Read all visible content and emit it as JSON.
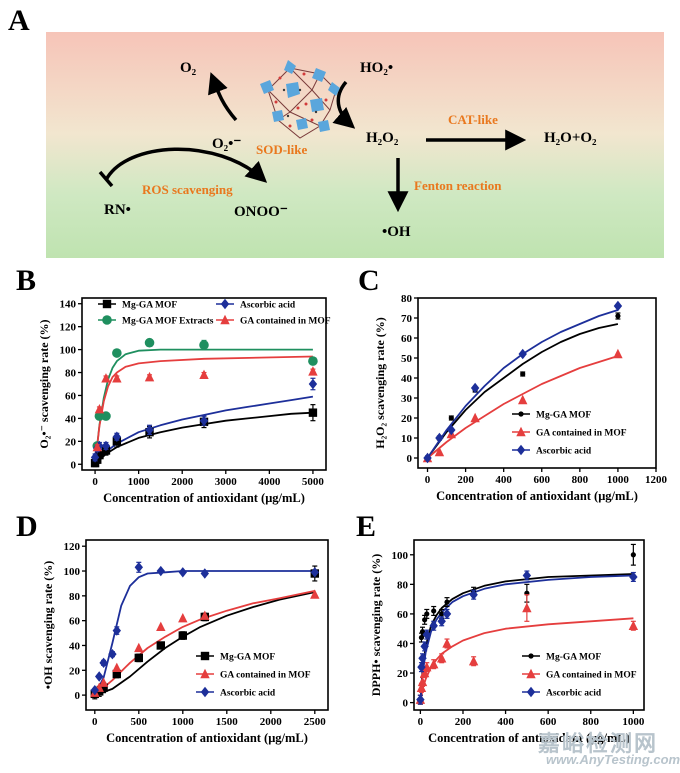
{
  "panel_labels": {
    "A": "A",
    "B": "B",
    "C": "C",
    "D": "D",
    "E": "E"
  },
  "panelA": {
    "o2": "O₂",
    "ho2": "HO₂•",
    "h2o2": "H₂O₂",
    "h2o_o2": "H₂O+O₂",
    "superoxide": "O₂•⁻",
    "rn": "RN•",
    "onoo": "ONOO⁻",
    "oh": "•OH",
    "sod_like": "SOD-like",
    "cat_like": "CAT-like",
    "fenton": "Fenton reaction",
    "ros_scavenging": "ROS scavenging",
    "colors": {
      "top": "#f6c4b8",
      "bottom": "#bfe3b0",
      "text_accent": "#e9781e",
      "mof": "#5aa6dc"
    }
  },
  "watermark": {
    "cn": "嘉峪检测网",
    "en": "www.AnyTesting.com"
  },
  "chart_data": [
    {
      "id": "B",
      "type": "scatter",
      "xlabel": "Concentration of antioxidant (μg/mL)",
      "ylabel": "O₂•⁻ scavenging rate (%)",
      "xlim": [
        -300,
        5300
      ],
      "ylim": [
        -5,
        145
      ],
      "xticks": [
        0,
        1000,
        2000,
        3000,
        4000,
        5000
      ],
      "yticks": [
        0,
        20,
        40,
        60,
        80,
        100,
        120,
        140
      ],
      "legend": "top, two columns",
      "series": [
        {
          "name": "Mg-GA MOF",
          "color": "#000000",
          "marker": "square",
          "x": [
            0,
            50,
            100,
            250,
            500,
            1250,
            2500,
            5000
          ],
          "y": [
            1,
            4,
            8,
            12,
            20,
            28,
            37,
            45
          ],
          "err": [
            3,
            3,
            3,
            4,
            5,
            5,
            5,
            7
          ]
        },
        {
          "name": "Mg-GA MOF Extracts",
          "color": "#1f8f5f",
          "marker": "circle",
          "x": [
            50,
            100,
            250,
            500,
            1250,
            2500,
            5000
          ],
          "y": [
            16,
            42,
            42,
            97,
            106,
            104,
            90
          ],
          "err": [
            2,
            3,
            3,
            2,
            2,
            4,
            3
          ]
        },
        {
          "name": "Ascorbic acid",
          "color": "#1d2f9a",
          "marker": "diamond",
          "x": [
            0,
            50,
            100,
            250,
            500,
            1250,
            2500,
            5000
          ],
          "y": [
            6,
            14,
            16,
            16,
            24,
            30,
            38,
            70
          ],
          "err": [
            3,
            3,
            3,
            3,
            3,
            4,
            4,
            5
          ]
        },
        {
          "name": "GA contained in MOF",
          "color": "#e53e3e",
          "marker": "triangle",
          "x": [
            50,
            100,
            250,
            500,
            1250,
            2500,
            5000
          ],
          "y": [
            15,
            48,
            75,
            75,
            76,
            78,
            81
          ],
          "err": [
            2,
            2,
            2,
            2,
            2,
            2,
            2
          ]
        }
      ],
      "fits": [
        {
          "color": "#000000",
          "x": [
            0,
            250,
            500,
            1000,
            1500,
            2000,
            2500,
            3000,
            3500,
            4000,
            4500,
            5000
          ],
          "y": [
            0,
            9,
            15,
            23,
            28,
            32,
            35,
            38,
            40,
            42,
            44,
            45
          ]
        },
        {
          "color": "#1f8f5f",
          "x": [
            0,
            100,
            200,
            300,
            400,
            500,
            700,
            1000,
            1500,
            2500,
            5000
          ],
          "y": [
            0,
            34,
            58,
            74,
            84,
            90,
            96,
            99,
            100,
            100,
            100
          ]
        },
        {
          "color": "#1d2f9a",
          "x": [
            0,
            250,
            500,
            1000,
            1500,
            2000,
            2500,
            3000,
            3500,
            4000,
            4500,
            5000
          ],
          "y": [
            0,
            11,
            18,
            28,
            34,
            39,
            43,
            47,
            50,
            53,
            56,
            59
          ]
        },
        {
          "color": "#e53e3e",
          "x": [
            0,
            100,
            200,
            300,
            400,
            500,
            700,
            1000,
            1500,
            2500,
            5000
          ],
          "y": [
            0,
            33,
            55,
            68,
            76,
            80,
            85,
            88,
            90,
            92,
            94
          ]
        }
      ]
    },
    {
      "id": "C",
      "type": "scatter",
      "xlabel": "Concentration of antioxidant (μg/mL)",
      "ylabel": "H₂O₂ scavenging rate (%)",
      "xlim": [
        -50,
        1200
      ],
      "ylim": [
        -5,
        80
      ],
      "xticks": [
        0,
        200,
        400,
        600,
        800,
        1000,
        1200
      ],
      "yticks": [
        0,
        10,
        20,
        30,
        40,
        50,
        60,
        70,
        80
      ],
      "legend": "right",
      "series": [
        {
          "name": "Mg-GA MOF",
          "color": "#000000",
          "marker": "dot",
          "x": [
            0,
            62.5,
            125,
            250,
            500,
            1000
          ],
          "y": [
            0,
            10,
            20,
            34,
            42,
            71
          ],
          "err": [
            1,
            1,
            1,
            1,
            1,
            1.5
          ]
        },
        {
          "name": "GA contained in MOF",
          "color": "#e53e3e",
          "marker": "triangle",
          "x": [
            0,
            62.5,
            125,
            250,
            500,
            1000
          ],
          "y": [
            0,
            3,
            12,
            20,
            29,
            52
          ],
          "err": [
            0,
            0,
            0,
            0,
            0,
            0
          ]
        },
        {
          "name": "Ascorbic acid",
          "color": "#1d2f9a",
          "marker": "diamond",
          "x": [
            0,
            62.5,
            125,
            250,
            500,
            1000
          ],
          "y": [
            0,
            10,
            14,
            35,
            52,
            76
          ],
          "err": [
            0,
            0,
            0,
            0,
            0,
            0
          ]
        }
      ],
      "fits": [
        {
          "color": "#000000",
          "x": [
            0,
            100,
            200,
            300,
            400,
            500,
            600,
            700,
            800,
            900,
            1000
          ],
          "y": [
            0,
            13,
            24,
            33,
            40,
            47,
            53,
            58,
            62,
            65,
            67
          ]
        },
        {
          "color": "#e53e3e",
          "x": [
            0,
            100,
            200,
            300,
            400,
            500,
            600,
            700,
            800,
            900,
            1000
          ],
          "y": [
            0,
            8,
            15,
            21,
            27,
            32,
            37,
            41,
            45,
            48,
            51
          ]
        },
        {
          "color": "#1d2f9a",
          "x": [
            0,
            100,
            200,
            300,
            400,
            500,
            600,
            700,
            800,
            900,
            1000
          ],
          "y": [
            0,
            14,
            26,
            36,
            45,
            52,
            58,
            63,
            67,
            71,
            74
          ]
        }
      ]
    },
    {
      "id": "D",
      "type": "scatter",
      "xlabel": "Concentration of antioxidant (μg/mL)",
      "ylabel": "•OH scavenging rate (%)",
      "xlim": [
        -100,
        2650
      ],
      "ylim": [
        -12,
        125
      ],
      "xticks": [
        0,
        500,
        1000,
        1500,
        2000,
        2500
      ],
      "yticks": [
        0,
        20,
        40,
        60,
        80,
        100,
        120
      ],
      "legend": "lower right",
      "series": [
        {
          "name": "Mg-GA MOF",
          "color": "#000000",
          "marker": "square",
          "x": [
            0,
            50,
            100,
            250,
            500,
            750,
            1000,
            1250,
            2500
          ],
          "y": [
            1,
            3,
            6,
            17,
            30,
            40,
            48,
            63,
            98
          ],
          "err": [
            4,
            4,
            4,
            3,
            3,
            2,
            3,
            3,
            6
          ]
        },
        {
          "name": "GA contained in MOF",
          "color": "#e53e3e",
          "marker": "triangle",
          "x": [
            0,
            50,
            100,
            250,
            500,
            750,
            1000,
            1250,
            2500
          ],
          "y": [
            2,
            6,
            10,
            22,
            38,
            55,
            62,
            64,
            81
          ],
          "err": [
            0,
            0,
            0,
            0,
            0,
            0,
            0,
            0,
            0
          ]
        },
        {
          "name": "Ascorbic acid",
          "color": "#1d2f9a",
          "marker": "diamond",
          "x": [
            0,
            50,
            100,
            200,
            250,
            500,
            750,
            1000,
            1250,
            2500
          ],
          "y": [
            4,
            15,
            26,
            33,
            52,
            103,
            100,
            99,
            98,
            99
          ],
          "err": [
            0,
            0,
            2,
            2,
            3,
            4,
            0,
            0,
            0,
            0
          ]
        }
      ],
      "fits": [
        {
          "color": "#000000",
          "x": [
            0,
            200,
            400,
            600,
            800,
            1000,
            1200,
            1500,
            1800,
            2100,
            2500
          ],
          "y": [
            0,
            5,
            15,
            27,
            38,
            47,
            55,
            64,
            71,
            77,
            83
          ]
        },
        {
          "color": "#e53e3e",
          "x": [
            0,
            200,
            400,
            600,
            800,
            1000,
            1200,
            1500,
            1800,
            2100,
            2500
          ],
          "y": [
            0,
            12,
            26,
            38,
            47,
            55,
            61,
            68,
            74,
            78,
            84
          ]
        },
        {
          "color": "#1d2f9a",
          "x": [
            0,
            100,
            200,
            300,
            400,
            500,
            600,
            800,
            1000,
            1500,
            2500
          ],
          "y": [
            0,
            14,
            42,
            72,
            88,
            95,
            98,
            99,
            100,
            100,
            100
          ]
        }
      ]
    },
    {
      "id": "E",
      "type": "scatter",
      "xlabel": "Concentration of antioxidant (μg/mL)",
      "ylabel": "DPPH• scavenging rate (%)",
      "xlim": [
        -30,
        1050
      ],
      "ylim": [
        -5,
        110
      ],
      "xticks": [
        0,
        200,
        400,
        600,
        800,
        1000
      ],
      "yticks": [
        0,
        20,
        40,
        60,
        80,
        100
      ],
      "legend": "lower right",
      "series": [
        {
          "name": "Mg-GA MOF",
          "color": "#000000",
          "marker": "dot",
          "x": [
            0,
            5,
            10,
            20,
            30,
            62.5,
            100,
            125,
            250,
            500,
            1000
          ],
          "y": [
            2,
            44,
            48,
            56,
            60,
            62,
            60,
            68,
            75,
            74,
            100
          ],
          "err": [
            3,
            3,
            3,
            3,
            3,
            3,
            3,
            3,
            3,
            6,
            7
          ]
        },
        {
          "name": "GA contained in MOF",
          "color": "#e53e3e",
          "marker": "triangle",
          "x": [
            0,
            5,
            10,
            20,
            30,
            62.5,
            100,
            125,
            250,
            500,
            1000
          ],
          "y": [
            2,
            10,
            14,
            20,
            24,
            26,
            30,
            40,
            28,
            64,
            52
          ],
          "err": [
            3,
            3,
            3,
            3,
            3,
            3,
            3,
            3,
            3,
            9,
            3
          ]
        },
        {
          "name": "Ascorbic acid",
          "color": "#1d2f9a",
          "marker": "diamond",
          "x": [
            0,
            5,
            10,
            20,
            30,
            62.5,
            100,
            125,
            250,
            500,
            1000
          ],
          "y": [
            2,
            24,
            30,
            38,
            46,
            52,
            55,
            60,
            73,
            86,
            85
          ],
          "err": [
            3,
            3,
            3,
            3,
            3,
            3,
            3,
            3,
            3,
            3,
            3
          ]
        }
      ],
      "fits": [
        {
          "color": "#000000",
          "x": [
            0,
            10,
            25,
            50,
            75,
            100,
            150,
            200,
            300,
            400,
            600,
            800,
            1000
          ],
          "y": [
            0,
            22,
            38,
            52,
            59,
            64,
            70,
            74,
            79,
            82,
            85,
            86,
            87
          ]
        },
        {
          "color": "#e53e3e",
          "x": [
            0,
            10,
            25,
            50,
            75,
            100,
            150,
            200,
            300,
            400,
            600,
            800,
            1000
          ],
          "y": [
            0,
            9,
            16,
            24,
            29,
            33,
            38,
            42,
            47,
            50,
            53,
            55,
            57
          ]
        },
        {
          "color": "#1d2f9a",
          "x": [
            0,
            10,
            25,
            50,
            75,
            100,
            150,
            200,
            300,
            400,
            600,
            800,
            1000
          ],
          "y": [
            0,
            19,
            34,
            48,
            56,
            61,
            68,
            72,
            77,
            80,
            83,
            85,
            86
          ]
        }
      ]
    }
  ]
}
